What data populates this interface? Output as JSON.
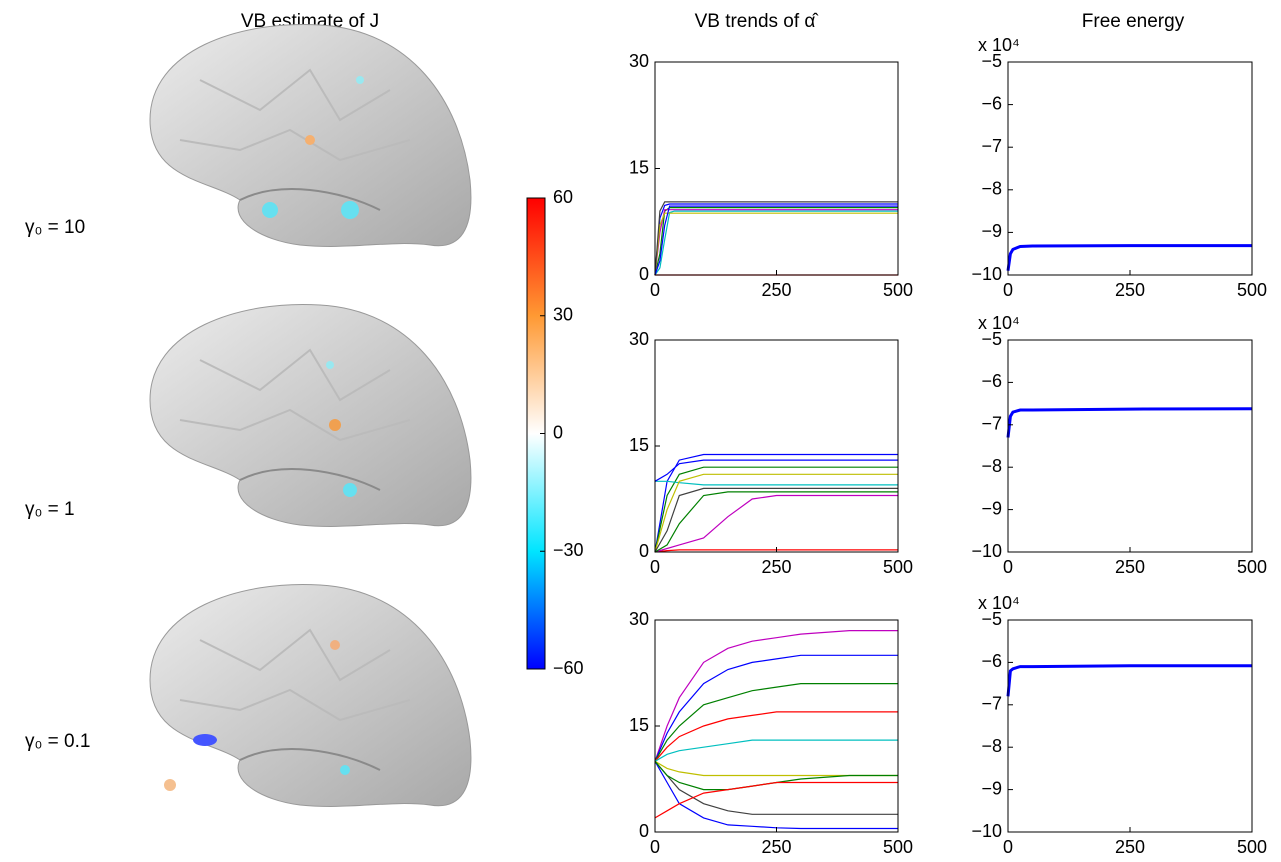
{
  "titles": [
    "VB estimate of J",
    "VB trends of α̂",
    "Free energy"
  ],
  "rows": [
    "γ₀ = 10",
    "γ₀ = 1",
    "γ₀ = 0.1"
  ],
  "colorbar": {
    "lim": [
      -60,
      60
    ],
    "ticks": [
      {
        "value": -60,
        "label": "−60"
      },
      {
        "value": -30,
        "label": "−30"
      },
      0,
      30,
      60
    ]
  },
  "chart_data": [
    {
      "type": "line",
      "xlim": [
        0,
        500
      ],
      "xticks": [
        0,
        250,
        500
      ],
      "ylim": [
        0,
        30
      ],
      "yticks": [
        0,
        15,
        30
      ],
      "x": [
        0,
        10,
        20,
        30,
        40,
        60,
        100,
        250,
        500
      ],
      "series": [
        {
          "color": "#0000ff",
          "values": [
            0,
            8,
            9.8,
            10,
            10,
            10,
            10,
            10,
            10
          ]
        },
        {
          "color": "#008000",
          "values": [
            0,
            3,
            9,
            9.5,
            9.5,
            9.5,
            9.5,
            9.5,
            9.5
          ]
        },
        {
          "color": "#ff0000",
          "values": [
            0,
            0,
            0,
            0,
            0,
            0,
            0,
            0,
            0
          ]
        },
        {
          "color": "#00bfbf",
          "values": [
            0,
            1,
            5,
            8.8,
            9,
            9,
            9,
            9,
            9
          ]
        },
        {
          "color": "#bf00bf",
          "values": [
            0,
            6,
            9.2,
            9.2,
            9.2,
            9.2,
            9.2,
            9.2,
            9.2
          ]
        },
        {
          "color": "#bfbf00",
          "values": [
            0,
            7,
            8.7,
            8.7,
            8.7,
            8.7,
            8.7,
            8.7,
            8.7
          ]
        },
        {
          "color": "#404040",
          "values": [
            0,
            9,
            10.3,
            10.3,
            10.3,
            10.3,
            10.3,
            10.3,
            10.3
          ]
        },
        {
          "color": "#0000ff",
          "values": [
            0,
            2,
            7,
            9.7,
            9.7,
            9.7,
            9.7,
            9.7,
            9.7
          ]
        }
      ]
    },
    {
      "type": "line",
      "xlim": [
        0,
        500
      ],
      "xticks": [
        0,
        250,
        500
      ],
      "ylim": [
        -10,
        -5
      ],
      "yticks": [
        {
          "value": -10,
          "label": "−10"
        },
        {
          "value": -9,
          "label": "−9"
        },
        {
          "value": -8,
          "label": "−8"
        },
        {
          "value": -7,
          "label": "−7"
        },
        {
          "value": -6,
          "label": "−6"
        },
        {
          "value": -5,
          "label": "−5"
        }
      ],
      "scale_label": "x 10⁴",
      "x": [
        0,
        5,
        10,
        25,
        50,
        250,
        500
      ],
      "series": [
        {
          "color": "#0000ff",
          "values": [
            -9.9,
            -9.5,
            -9.4,
            -9.33,
            -9.32,
            -9.31,
            -9.31
          ]
        }
      ]
    },
    {
      "type": "line",
      "xlim": [
        0,
        500
      ],
      "xticks": [
        0,
        250,
        500
      ],
      "ylim": [
        0,
        30
      ],
      "yticks": [
        0,
        15,
        30
      ],
      "x": [
        0,
        25,
        50,
        100,
        150,
        200,
        250,
        300,
        500
      ],
      "series": [
        {
          "color": "#0000ff",
          "values": [
            0,
            10,
            13,
            13.8,
            13.8,
            13.8,
            13.8,
            13.8,
            13.8
          ]
        },
        {
          "color": "#008000",
          "values": [
            0,
            8,
            11,
            12,
            12,
            12,
            12,
            12,
            12
          ]
        },
        {
          "color": "#ff0000",
          "values": [
            0,
            0.2,
            0.3,
            0.3,
            0.3,
            0.3,
            0.3,
            0.3,
            0.3
          ]
        },
        {
          "color": "#00bfbf",
          "values": [
            10,
            10,
            9.8,
            9.5,
            9.5,
            9.5,
            9.5,
            9.5,
            9.5
          ]
        },
        {
          "color": "#bf00bf",
          "values": [
            0,
            0.5,
            1,
            2,
            5,
            7.5,
            8,
            8,
            8
          ]
        },
        {
          "color": "#bfbf00",
          "values": [
            0,
            6,
            10,
            11,
            11,
            11,
            11,
            11,
            11
          ]
        },
        {
          "color": "#404040",
          "values": [
            0,
            3,
            8,
            9,
            9,
            9,
            9,
            9,
            9
          ]
        },
        {
          "color": "#0000ff",
          "values": [
            10,
            11,
            12.5,
            13,
            13,
            13,
            13,
            13,
            13
          ]
        },
        {
          "color": "#008000",
          "values": [
            0,
            1,
            4,
            8,
            8.5,
            8.5,
            8.5,
            8.5,
            8.5
          ]
        }
      ]
    },
    {
      "type": "line",
      "xlim": [
        0,
        500
      ],
      "xticks": [
        0,
        250,
        500
      ],
      "ylim": [
        -10,
        -5
      ],
      "yticks": [
        {
          "value": -10,
          "label": "−10"
        },
        {
          "value": -9,
          "label": "−9"
        },
        {
          "value": -8,
          "label": "−8"
        },
        {
          "value": -7,
          "label": "−7"
        },
        {
          "value": -6,
          "label": "−6"
        },
        {
          "value": -5,
          "label": "−5"
        }
      ],
      "scale_label": "x 10⁴",
      "x": [
        0,
        5,
        10,
        25,
        50,
        250,
        500
      ],
      "series": [
        {
          "color": "#0000ff",
          "values": [
            -7.3,
            -6.8,
            -6.7,
            -6.65,
            -6.65,
            -6.63,
            -6.62
          ]
        }
      ]
    },
    {
      "type": "line",
      "xlim": [
        0,
        500
      ],
      "xticks": [
        0,
        250,
        500
      ],
      "ylim": [
        0,
        30
      ],
      "yticks": [
        0,
        15,
        30
      ],
      "x": [
        0,
        25,
        50,
        100,
        150,
        200,
        250,
        300,
        400,
        500
      ],
      "series": [
        {
          "color": "#bf00bf",
          "values": [
            10,
            15,
            19,
            24,
            26,
            27,
            27.5,
            28,
            28.5,
            28.5
          ]
        },
        {
          "color": "#0000ff",
          "values": [
            10,
            14,
            17,
            21,
            23,
            24,
            24.5,
            25,
            25,
            25
          ]
        },
        {
          "color": "#008000",
          "values": [
            10,
            13,
            15,
            18,
            19,
            20,
            20.5,
            21,
            21,
            21
          ]
        },
        {
          "color": "#ff0000",
          "values": [
            10,
            12,
            13.5,
            15,
            16,
            16.5,
            17,
            17,
            17,
            17
          ]
        },
        {
          "color": "#00bfbf",
          "values": [
            10,
            11,
            11.5,
            12,
            12.5,
            13,
            13,
            13,
            13,
            13
          ]
        },
        {
          "color": "#bfbf00",
          "values": [
            10,
            9,
            8.5,
            8,
            8,
            8,
            8,
            8,
            8,
            8
          ]
        },
        {
          "color": "#404040",
          "values": [
            10,
            8,
            6,
            4,
            3,
            2.5,
            2.5,
            2.5,
            2.5,
            2.5
          ]
        },
        {
          "color": "#0000ff",
          "values": [
            10,
            7,
            4,
            2,
            1,
            0.8,
            0.6,
            0.5,
            0.5,
            0.5
          ]
        },
        {
          "color": "#008000",
          "values": [
            10,
            8,
            7,
            6,
            6,
            6.5,
            7,
            7.5,
            8,
            8
          ]
        },
        {
          "color": "#ff0000",
          "values": [
            2,
            3,
            4,
            5.5,
            6,
            6.5,
            7,
            7,
            7,
            7
          ]
        }
      ]
    },
    {
      "type": "line",
      "xlim": [
        0,
        500
      ],
      "xticks": [
        0,
        250,
        500
      ],
      "ylim": [
        -10,
        -5
      ],
      "yticks": [
        {
          "value": -10,
          "label": "−10"
        },
        {
          "value": -9,
          "label": "−9"
        },
        {
          "value": -8,
          "label": "−8"
        },
        {
          "value": -7,
          "label": "−7"
        },
        {
          "value": -6,
          "label": "−6"
        },
        {
          "value": -5,
          "label": "−5"
        }
      ],
      "scale_label": "x 10⁴",
      "x": [
        0,
        5,
        10,
        25,
        50,
        250,
        500
      ],
      "series": [
        {
          "color": "#0000ff",
          "values": [
            -6.8,
            -6.2,
            -6.15,
            -6.1,
            -6.1,
            -6.08,
            -6.08
          ]
        }
      ]
    }
  ]
}
